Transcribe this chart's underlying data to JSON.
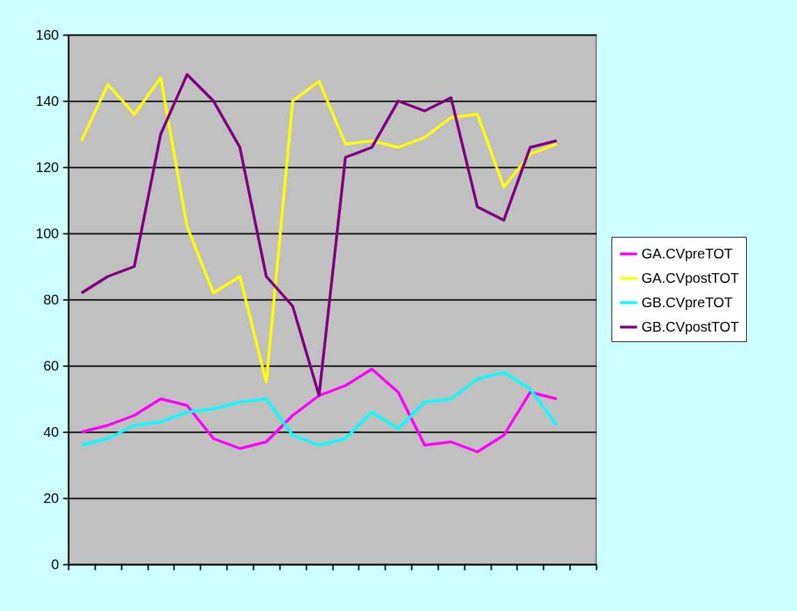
{
  "chart_data": {
    "type": "line",
    "categories": [
      null,
      null,
      null,
      null,
      null,
      null,
      null,
      null,
      null,
      null,
      null,
      null,
      null,
      null,
      null,
      null,
      null,
      null,
      null,
      null
    ],
    "series": [
      {
        "name": "GA.CVpreTOT",
        "color": "#ff00ff",
        "values": [
          40,
          42,
          45,
          50,
          48,
          38,
          35,
          37,
          45,
          51,
          54,
          59,
          52,
          36,
          37,
          34,
          39,
          52,
          50,
          null
        ]
      },
      {
        "name": "GA.CVpostTOT",
        "color": "#ffff00",
        "values": [
          128,
          145,
          136,
          147,
          102,
          82,
          87,
          55,
          140,
          146,
          127,
          128,
          126,
          129,
          135,
          136,
          114,
          124,
          127,
          null
        ]
      },
      {
        "name": "GB.CVpreTOT",
        "color": "#00ffff",
        "values": [
          36,
          38,
          42,
          43,
          46,
          47,
          49,
          50,
          39,
          36,
          38,
          46,
          41,
          49,
          50,
          56,
          58,
          53,
          42,
          null
        ]
      },
      {
        "name": "GB.CVpostTOT",
        "color": "#800080",
        "values": [
          82,
          87,
          90,
          130,
          148,
          140,
          126,
          87,
          78,
          51,
          123,
          126,
          140,
          137,
          141,
          108,
          104,
          126,
          128,
          null
        ]
      }
    ],
    "ylim": [
      0,
      160
    ],
    "yticks": [
      0,
      20,
      40,
      60,
      80,
      100,
      120,
      140,
      160
    ],
    "grid": "y",
    "legend": "right",
    "marker": "none",
    "line_style": "solid"
  }
}
